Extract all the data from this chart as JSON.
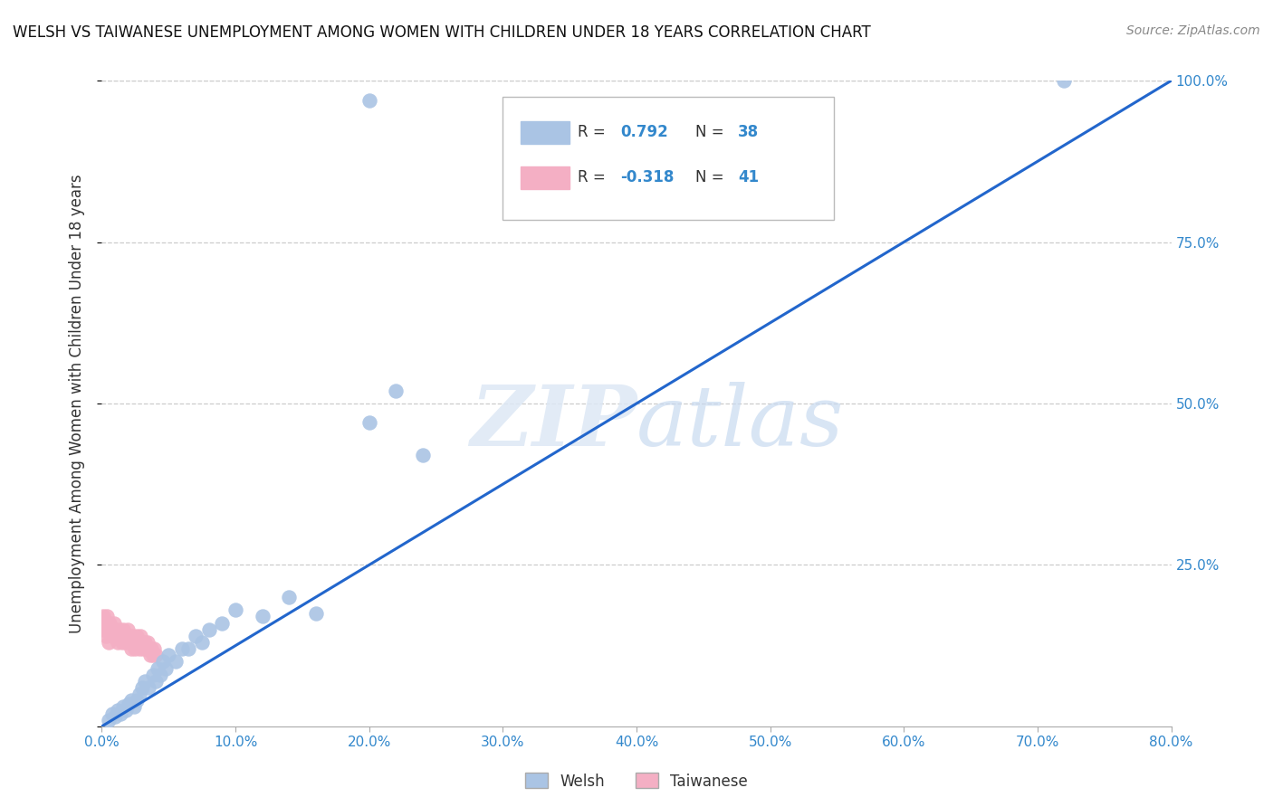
{
  "title": "WELSH VS TAIWANESE UNEMPLOYMENT AMONG WOMEN WITH CHILDREN UNDER 18 YEARS CORRELATION CHART",
  "source": "Source: ZipAtlas.com",
  "ylabel": "Unemployment Among Women with Children Under 18 years",
  "watermark_zip": "ZIP",
  "watermark_atlas": "atlas",
  "welsh_R": 0.792,
  "welsh_N": 38,
  "taiwanese_R": -0.318,
  "taiwanese_N": 41,
  "xlim": [
    0.0,
    0.8
  ],
  "ylim": [
    0.0,
    1.0
  ],
  "xticks": [
    0.0,
    0.1,
    0.2,
    0.3,
    0.4,
    0.5,
    0.6,
    0.7,
    0.8
  ],
  "yticks": [
    0.0,
    0.25,
    0.5,
    0.75,
    1.0
  ],
  "ytick_labels": [
    "",
    "25.0%",
    "50.0%",
    "75.0%",
    "100.0%"
  ],
  "xtick_labels": [
    "0.0%",
    "10.0%",
    "20.0%",
    "30.0%",
    "40.0%",
    "50.0%",
    "60.0%",
    "70.0%",
    "80.0%"
  ],
  "welsh_color": "#aac4e4",
  "taiwanese_color": "#f4afc4",
  "line_color": "#2266cc",
  "background_color": "#ffffff",
  "grid_color": "#cccccc",
  "title_color": "#111111",
  "axis_label_color": "#333333",
  "tick_color": "#3388cc",
  "legend_color": "#3388cc",
  "welsh_x": [
    0.005,
    0.008,
    0.01,
    0.012,
    0.014,
    0.016,
    0.018,
    0.02,
    0.022,
    0.024,
    0.026,
    0.028,
    0.03,
    0.032,
    0.035,
    0.038,
    0.04,
    0.042,
    0.044,
    0.046,
    0.048,
    0.05,
    0.055,
    0.06,
    0.065,
    0.07,
    0.075,
    0.08,
    0.09,
    0.1,
    0.12,
    0.14,
    0.16,
    0.2,
    0.22,
    0.24,
    0.72,
    0.2
  ],
  "welsh_y": [
    0.01,
    0.02,
    0.015,
    0.025,
    0.02,
    0.03,
    0.025,
    0.035,
    0.04,
    0.03,
    0.04,
    0.05,
    0.06,
    0.07,
    0.06,
    0.08,
    0.07,
    0.09,
    0.08,
    0.1,
    0.09,
    0.11,
    0.1,
    0.12,
    0.12,
    0.14,
    0.13,
    0.15,
    0.16,
    0.18,
    0.17,
    0.2,
    0.175,
    0.47,
    0.52,
    0.42,
    1.0,
    0.97
  ],
  "taiwanese_x": [
    0.001,
    0.002,
    0.003,
    0.004,
    0.005,
    0.006,
    0.007,
    0.008,
    0.009,
    0.01,
    0.011,
    0.012,
    0.013,
    0.014,
    0.015,
    0.016,
    0.017,
    0.018,
    0.019,
    0.02,
    0.021,
    0.022,
    0.023,
    0.024,
    0.025,
    0.026,
    0.027,
    0.028,
    0.029,
    0.03,
    0.031,
    0.032,
    0.033,
    0.034,
    0.035,
    0.036,
    0.037,
    0.038,
    0.039,
    0.04,
    0.001
  ],
  "taiwanese_y": [
    0.15,
    0.16,
    0.14,
    0.17,
    0.13,
    0.16,
    0.15,
    0.14,
    0.16,
    0.15,
    0.14,
    0.13,
    0.15,
    0.14,
    0.13,
    0.15,
    0.14,
    0.13,
    0.15,
    0.14,
    0.13,
    0.12,
    0.14,
    0.13,
    0.12,
    0.14,
    0.13,
    0.12,
    0.14,
    0.13,
    0.12,
    0.13,
    0.12,
    0.13,
    0.12,
    0.11,
    0.12,
    0.11,
    0.12,
    0.11,
    0.17
  ],
  "line_x0": 0.0,
  "line_y0": 0.0,
  "line_x1": 0.8,
  "line_y1": 1.0
}
